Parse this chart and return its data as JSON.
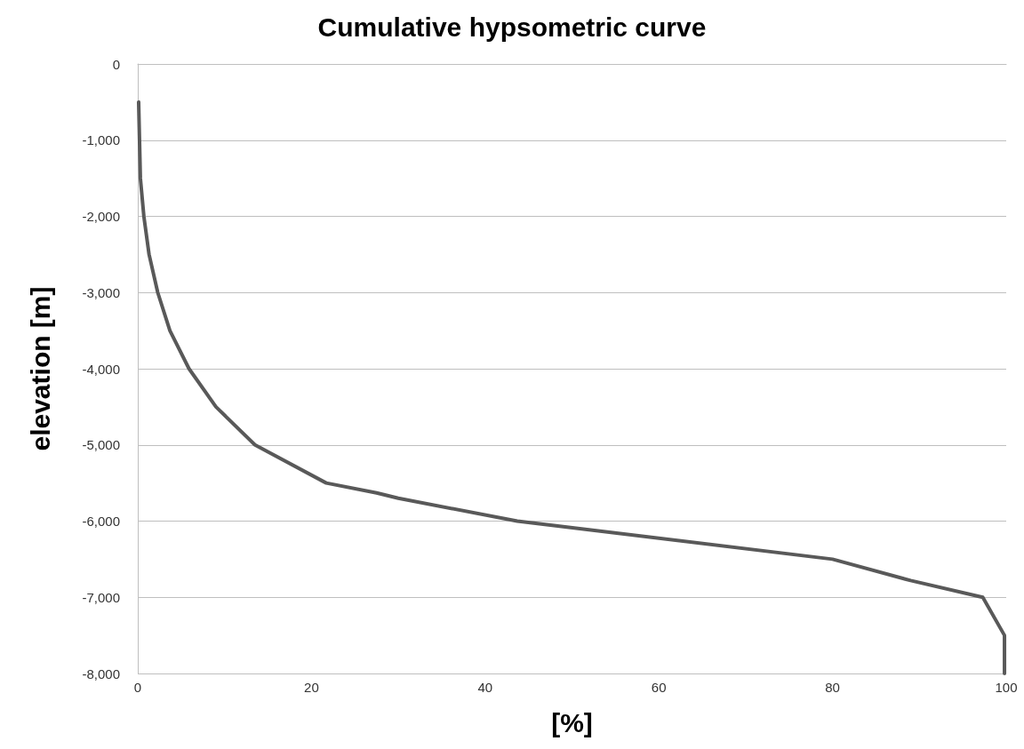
{
  "chart_data": {
    "type": "line",
    "title": "Cumulative hypsometric curve",
    "xlabel": "[%]",
    "ylabel": "elevation [m]",
    "series": [
      {
        "color": "#595959",
        "x": [
          0.1,
          0.2,
          0.3,
          0.7,
          1.3,
          2.3,
          3.7,
          5.9,
          9,
          13.5,
          21.7,
          27.5,
          30,
          43.7,
          80,
          89,
          97.3,
          99.8,
          99.8
        ],
        "values": [
          -500,
          -1000,
          -1500,
          -2000,
          -2500,
          -3000,
          -3500,
          -4000,
          -4500,
          -5000,
          -5500,
          -5630,
          -5700,
          -6000,
          -6500,
          -6780,
          -7000,
          -7500,
          -8000
        ]
      }
    ],
    "xlim": [
      0,
      100
    ],
    "xticks": [
      0,
      20,
      40,
      60,
      80,
      100
    ],
    "ylim": [
      -8000,
      0
    ],
    "yticks": [
      0,
      {
        "value": -1000,
        "label": "-1,000"
      },
      {
        "value": -2000,
        "label": "-2,000"
      },
      {
        "value": -3000,
        "label": "-3,000"
      },
      {
        "value": -4000,
        "label": "-4,000"
      },
      {
        "value": -5000,
        "label": "-5,000"
      },
      {
        "value": -6000,
        "label": "-6,000"
      },
      {
        "value": -7000,
        "label": "-7,000"
      },
      {
        "value": -8000,
        "label": "-8,000"
      }
    ],
    "grid": "y",
    "marker": "none",
    "line_style": "solid"
  }
}
